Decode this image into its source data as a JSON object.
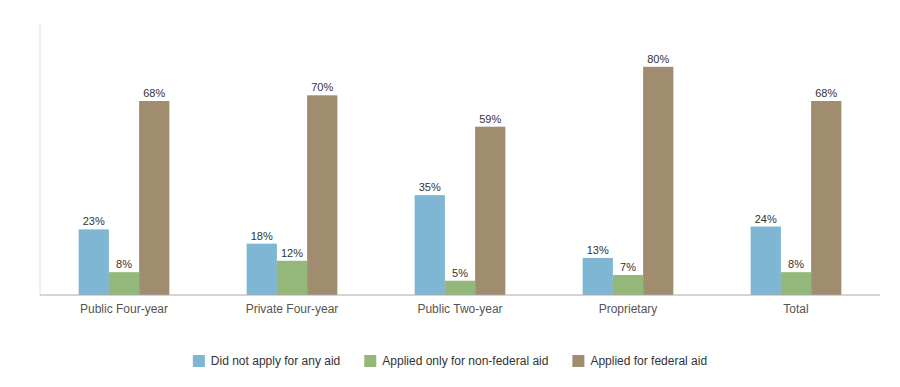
{
  "chart_data": {
    "type": "bar",
    "categories": [
      "Public Four-year",
      "Private Four-year",
      "Public Two-year",
      "Proprietary",
      "Total"
    ],
    "series": [
      {
        "name": "Did not apply for any aid",
        "color": "#7eb6d4",
        "values": [
          23,
          18,
          35,
          13,
          24
        ],
        "value_labels": [
          "23%",
          "18%",
          "35%",
          "13%",
          "24%"
        ]
      },
      {
        "name": "Applied only for non-federal aid",
        "color": "#93b87a",
        "values": [
          8,
          12,
          5,
          7,
          8
        ],
        "value_labels": [
          "8%",
          "12%",
          "5%",
          "7%",
          "8%"
        ]
      },
      {
        "name": "Applied for federal aid",
        "color": "#a08c6e",
        "values": [
          68,
          70,
          59,
          80,
          68
        ],
        "value_labels": [
          "68%",
          "70%",
          "59%",
          "80%",
          "68%"
        ]
      }
    ],
    "ylim": [
      0,
      95
    ],
    "grid": false,
    "data_labels": true,
    "tick_labels": "x",
    "legend": "bottom"
  }
}
